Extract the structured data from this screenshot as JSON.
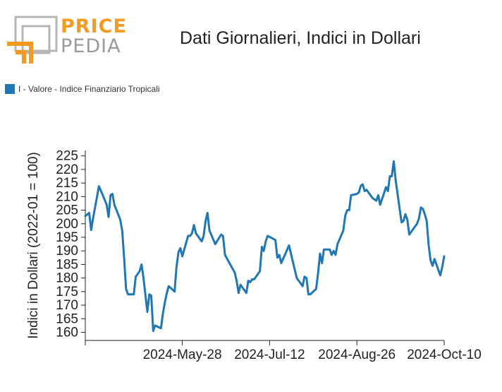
{
  "logo": {
    "word_top": "PRICE",
    "word_bottom": "PEDIA",
    "color_orange": "#f39a21",
    "color_gray": "#b5b5b5"
  },
  "header": {
    "title": "Dati Giornalieri, Indici in Dollari"
  },
  "legend": {
    "label": "I - Valore - Indice Finanziario Tropicali",
    "color": "#1f77b4"
  },
  "chart_data": {
    "type": "line",
    "title": "Dati Giornalieri, Indici in Dollari",
    "xlabel": "",
    "ylabel": "Indici in Dollari (2022-01 = 100)",
    "ylim": [
      157,
      227
    ],
    "yticks": [
      160,
      165,
      170,
      175,
      180,
      185,
      190,
      195,
      200,
      205,
      210,
      215,
      220,
      225
    ],
    "xlim": [
      "2024-04-08",
      "2024-10-10"
    ],
    "xticks": [
      "2024-May-28",
      "2024-Jul-12",
      "2024-Aug-26",
      "2024-Oct-10"
    ],
    "grid": false,
    "legend_position": "top-left",
    "series": [
      {
        "name": "I - Valore - Indice Finanziario Tropicali",
        "color": "#1f77b4",
        "points": [
          [
            "2024-04-08",
            202.8
          ],
          [
            "2024-04-10",
            204.0
          ],
          [
            "2024-04-11",
            197.7
          ],
          [
            "2024-04-12",
            202.0
          ],
          [
            "2024-04-15",
            213.8
          ],
          [
            "2024-04-17",
            210.5
          ],
          [
            "2024-04-19",
            207.0
          ],
          [
            "2024-04-20",
            202.5
          ],
          [
            "2024-04-21",
            210.5
          ],
          [
            "2024-04-22",
            211.0
          ],
          [
            "2024-04-23",
            207.0
          ],
          [
            "2024-04-26",
            201.5
          ],
          [
            "2024-04-27",
            197.5
          ],
          [
            "2024-04-28",
            187.5
          ],
          [
            "2024-04-29",
            176.0
          ],
          [
            "2024-04-30",
            174.0
          ],
          [
            "2024-05-03",
            174.0
          ],
          [
            "2024-05-04",
            180.5
          ],
          [
            "2024-05-06",
            182.5
          ],
          [
            "2024-05-07",
            185.0
          ],
          [
            "2024-05-08",
            180.0
          ],
          [
            "2024-05-10",
            167.5
          ],
          [
            "2024-05-11",
            174.0
          ],
          [
            "2024-05-12",
            173.5
          ],
          [
            "2024-05-13",
            160.5
          ],
          [
            "2024-05-14",
            162.5
          ],
          [
            "2024-05-17",
            161.5
          ],
          [
            "2024-05-18",
            167.0
          ],
          [
            "2024-05-19",
            171.0
          ],
          [
            "2024-05-20",
            174.5
          ],
          [
            "2024-05-21",
            177.0
          ],
          [
            "2024-05-24",
            175.0
          ],
          [
            "2024-05-25",
            184.0
          ],
          [
            "2024-05-26",
            189.5
          ],
          [
            "2024-05-27",
            191.0
          ],
          [
            "2024-05-28",
            188.0
          ],
          [
            "2024-05-31",
            195.5
          ],
          [
            "2024-06-01",
            195.5
          ],
          [
            "2024-06-02",
            196.5
          ],
          [
            "2024-06-03",
            199.5
          ],
          [
            "2024-06-04",
            196.5
          ],
          [
            "2024-06-07",
            193.5
          ],
          [
            "2024-06-08",
            195.5
          ],
          [
            "2024-06-09",
            201.0
          ],
          [
            "2024-06-10",
            204.0
          ],
          [
            "2024-06-11",
            197.5
          ],
          [
            "2024-06-14",
            192.5
          ],
          [
            "2024-06-17",
            196.0
          ],
          [
            "2024-06-18",
            195.5
          ],
          [
            "2024-06-19",
            188.5
          ],
          [
            "2024-06-24",
            182.0
          ],
          [
            "2024-06-25",
            179.0
          ],
          [
            "2024-06-26",
            174.5
          ],
          [
            "2024-06-27",
            177.5
          ],
          [
            "2024-06-30",
            174.5
          ],
          [
            "2024-07-01",
            179.0
          ],
          [
            "2024-07-02",
            178.5
          ],
          [
            "2024-07-03",
            179.5
          ],
          [
            "2024-07-04",
            179.5
          ],
          [
            "2024-07-07",
            182.5
          ],
          [
            "2024-07-08",
            191.5
          ],
          [
            "2024-07-09",
            190.0
          ],
          [
            "2024-07-10",
            193.5
          ],
          [
            "2024-07-11",
            195.5
          ],
          [
            "2024-07-15",
            194.0
          ],
          [
            "2024-07-16",
            187.5
          ],
          [
            "2024-07-17",
            188.5
          ],
          [
            "2024-07-18",
            185.5
          ],
          [
            "2024-07-22",
            192.0
          ],
          [
            "2024-07-24",
            186.0
          ],
          [
            "2024-07-26",
            180.0
          ],
          [
            "2024-07-29",
            177.0
          ],
          [
            "2024-07-30",
            180.5
          ],
          [
            "2024-07-31",
            180.0
          ],
          [
            "2024-08-01",
            174.0
          ],
          [
            "2024-08-02",
            174.0
          ],
          [
            "2024-08-05",
            176.0
          ],
          [
            "2024-08-06",
            182.0
          ],
          [
            "2024-08-07",
            189.0
          ],
          [
            "2024-08-08",
            185.5
          ],
          [
            "2024-08-09",
            190.5
          ],
          [
            "2024-08-12",
            190.5
          ],
          [
            "2024-08-13",
            188.5
          ],
          [
            "2024-08-14",
            190.0
          ],
          [
            "2024-08-15",
            188.5
          ],
          [
            "2024-08-16",
            192.5
          ],
          [
            "2024-08-19",
            197.5
          ],
          [
            "2024-08-20",
            203.0
          ],
          [
            "2024-08-21",
            205.0
          ],
          [
            "2024-08-22",
            205.0
          ],
          [
            "2024-08-23",
            210.5
          ],
          [
            "2024-08-26",
            211.0
          ],
          [
            "2024-08-27",
            211.5
          ],
          [
            "2024-08-28",
            214.0
          ],
          [
            "2024-08-29",
            214.5
          ],
          [
            "2024-08-30",
            212.0
          ],
          [
            "2024-08-31",
            212.5
          ],
          [
            "2024-09-03",
            209.5
          ],
          [
            "2024-09-04",
            209.0
          ],
          [
            "2024-09-05",
            208.5
          ],
          [
            "2024-09-06",
            210.5
          ],
          [
            "2024-09-07",
            207.0
          ],
          [
            "2024-09-10",
            213.5
          ],
          [
            "2024-09-11",
            212.0
          ],
          [
            "2024-09-12",
            217.5
          ],
          [
            "2024-09-13",
            217.5
          ],
          [
            "2024-09-14",
            223.0
          ],
          [
            "2024-09-15",
            216.0
          ],
          [
            "2024-09-18",
            200.5
          ],
          [
            "2024-09-19",
            201.0
          ],
          [
            "2024-09-20",
            203.5
          ],
          [
            "2024-09-21",
            201.5
          ],
          [
            "2024-09-22",
            196.0
          ],
          [
            "2024-09-23",
            197.0
          ],
          [
            "2024-09-26",
            200.0
          ],
          [
            "2024-09-27",
            202.0
          ],
          [
            "2024-09-28",
            206.0
          ],
          [
            "2024-09-29",
            205.5
          ],
          [
            "2024-09-30",
            203.5
          ],
          [
            "2024-10-01",
            201.0
          ],
          [
            "2024-10-02",
            192.0
          ],
          [
            "2024-10-03",
            186.5
          ],
          [
            "2024-10-04",
            184.5
          ],
          [
            "2024-10-05",
            187.0
          ],
          [
            "2024-10-06",
            185.0
          ],
          [
            "2024-10-07",
            183.0
          ],
          [
            "2024-10-08",
            181.0
          ],
          [
            "2024-10-09",
            184.0
          ],
          [
            "2024-10-10",
            188.0
          ]
        ]
      }
    ]
  }
}
